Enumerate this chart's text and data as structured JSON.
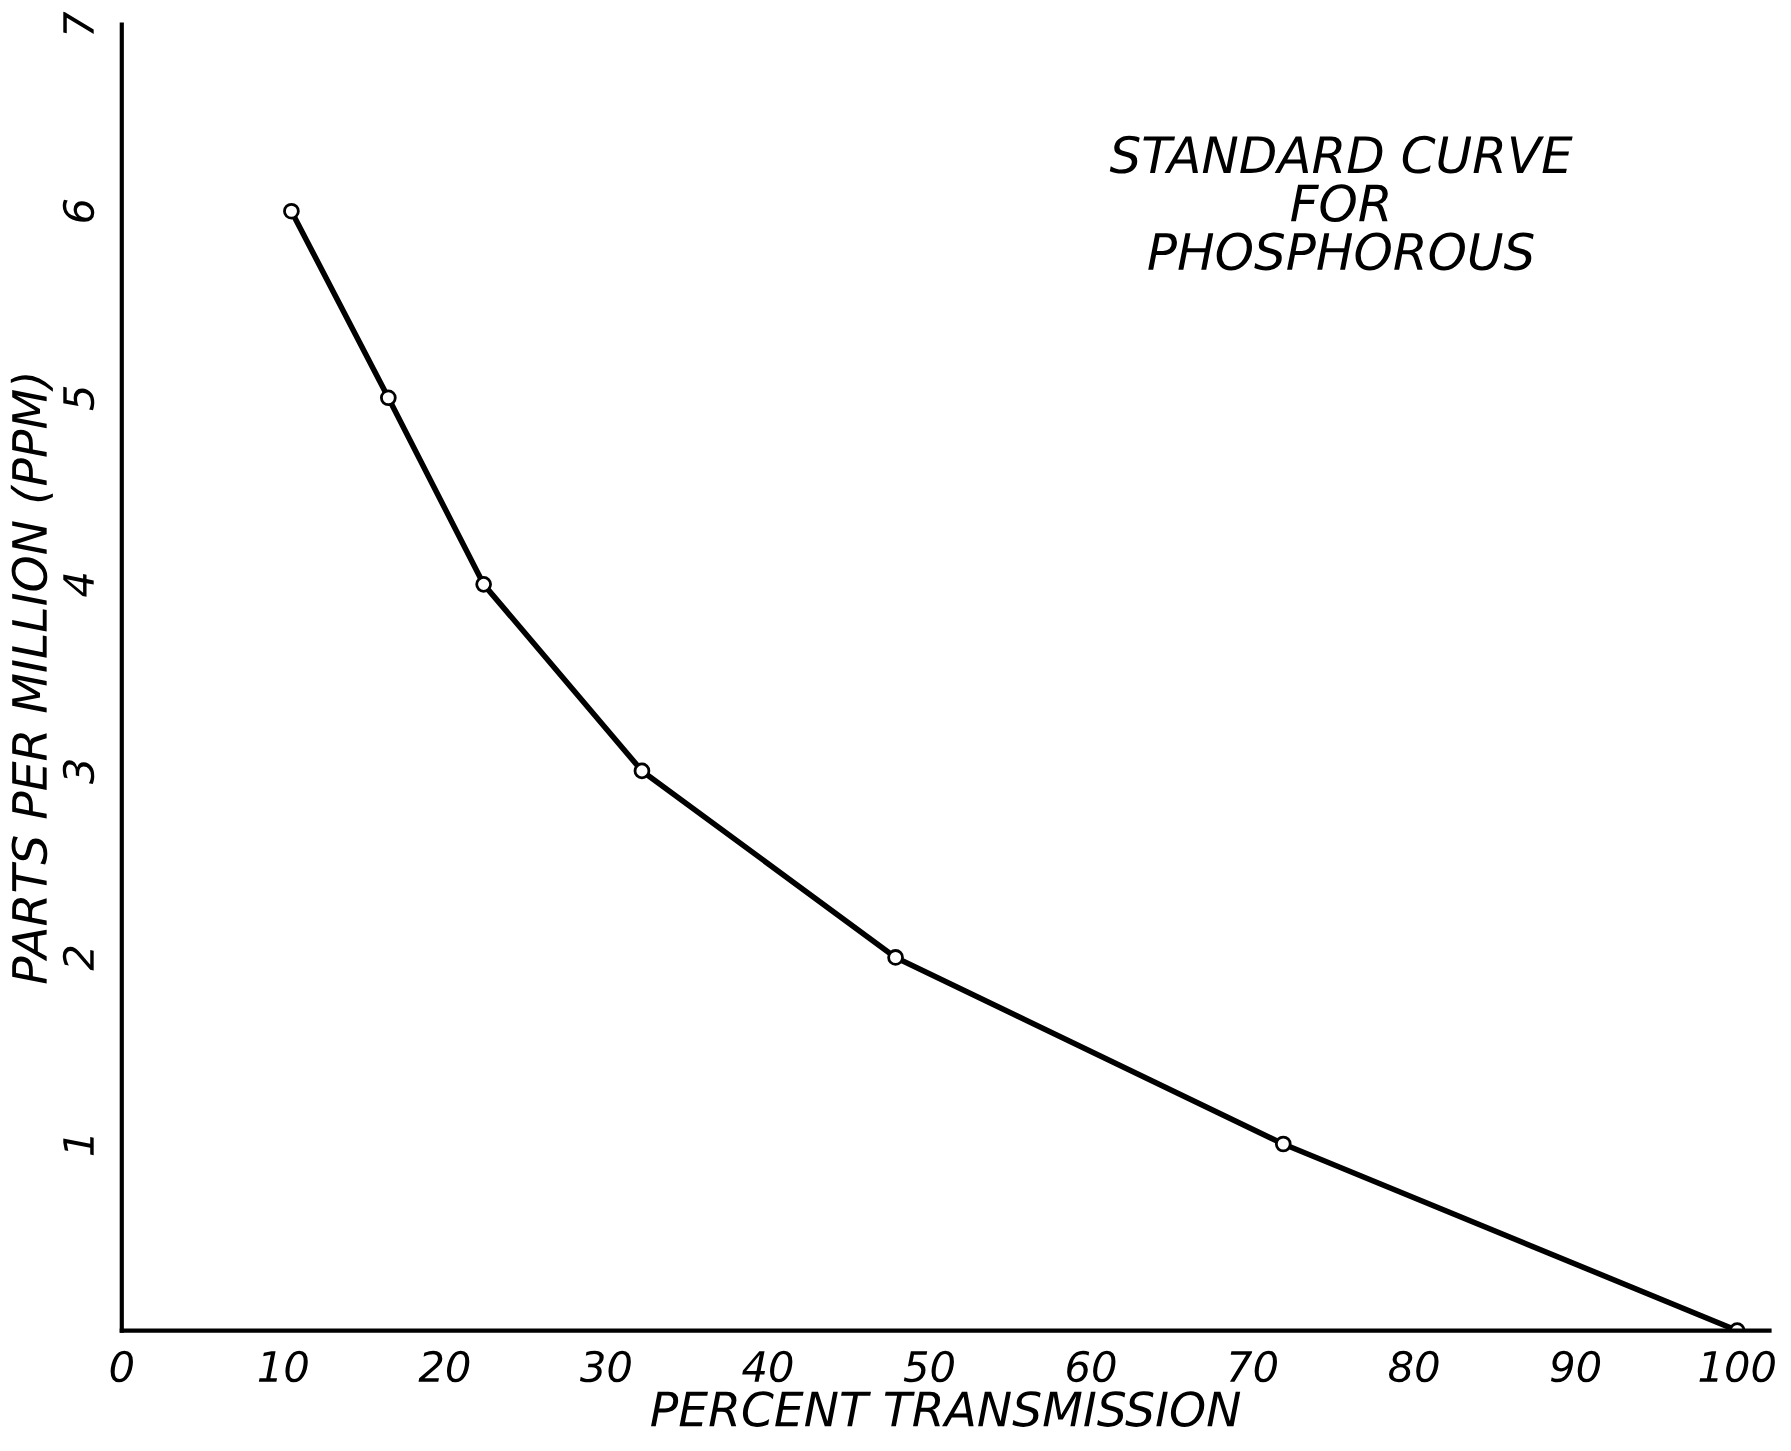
{
  "chart_data": {
    "type": "line",
    "title": "STANDARD CURVE\nFOR\nPHOSPHOROUS",
    "xlabel": "PERCENT TRANSMISSION",
    "ylabel": "PARTS PER MILLION (PPM)",
    "series": [
      {
        "color": "#000000",
        "x": [
          10.5,
          16.5,
          22.4,
          32.2,
          47.9,
          71.9,
          100
        ],
        "values": [
          6,
          5,
          4,
          3,
          2,
          1,
          0
        ]
      }
    ],
    "marker": "circle",
    "line_style": "solid",
    "grid": false,
    "legend": false,
    "xlim": [
      0,
      102
    ],
    "xticks": [
      0,
      10,
      20,
      30,
      40,
      50,
      60,
      70,
      80,
      90,
      100
    ],
    "ylim": [
      0,
      7
    ],
    "yticks": [
      1,
      2,
      3,
      4,
      5,
      6,
      7
    ]
  }
}
